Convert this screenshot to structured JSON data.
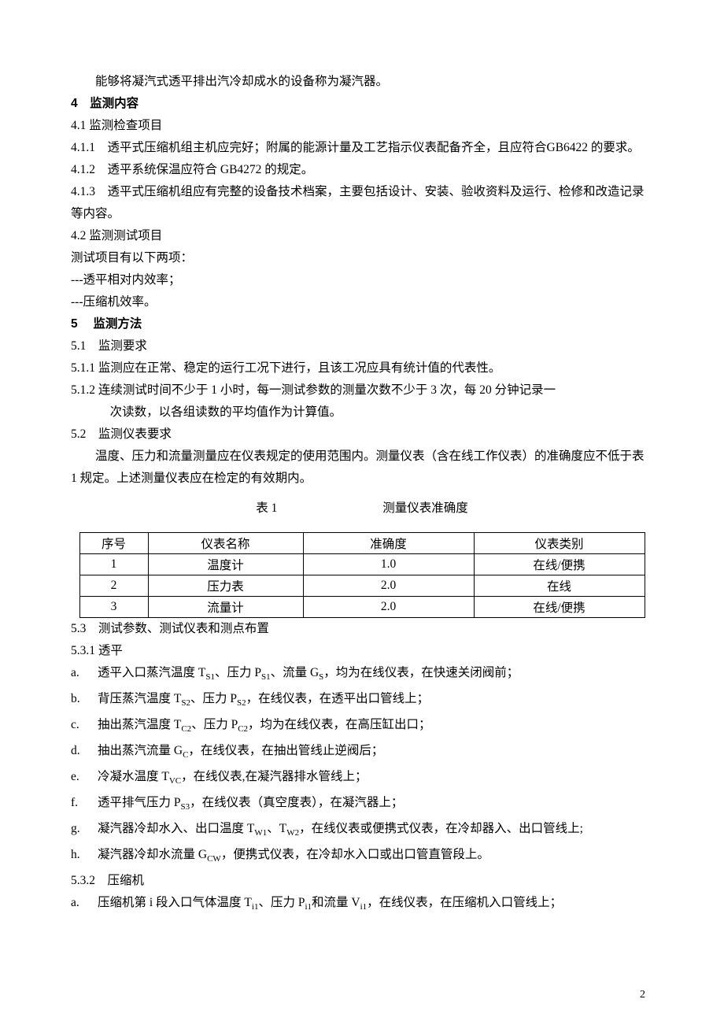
{
  "intro_line": "能够将凝汽式透平排出汽冷却成水的设备称为凝汽器。",
  "sec4": {
    "heading": "4　监测内容",
    "s4_1": "4.1 监测检查项目",
    "s4_1_1": "4.1.1　透平式压缩机组主机应完好；附属的能源计量及工艺指示仪表配备齐全，且应符合GB6422 的要求。",
    "s4_1_2": "4.1.2　透平系统保温应符合 GB4272 的规定。",
    "s4_1_3": "4.1.3　透平式压缩机组应有完整的设备技术档案，主要包括设计、安装、验收资料及运行、检修和改造记录等内容。",
    "s4_2": "4.2 监测测试项目",
    "s4_2_intro": "测试项目有以下两项：",
    "s4_2_item1": "---透平相对内效率；",
    "s4_2_item2": "---压缩机效率。"
  },
  "sec5": {
    "heading": "5　 监测方法",
    "s5_1": "5.1　监测要求",
    "s5_1_1": "5.1.1 监测应在正常、稳定的运行工况下进行，且该工况应具有统计值的代表性。",
    "s5_1_2a": "5.1.2 连续测试时间不少于 1 小时，每一测试参数的测量次数不少于 3 次，每 20 分钟记录一",
    "s5_1_2b": "次读数，以各组读数的平均值作为计算值。",
    "s5_2": "5.2　监测仪表要求",
    "s5_2_para": "温度、压力和流量测量应在仪表规定的使用范围内。测量仪表（含在线工作仪表）的准确度应不低于表 1 规定。上述测量仪表应在检定的有效期内。",
    "table": {
      "caption_label": "表 1",
      "caption_title": "测量仪表准确度",
      "headers": [
        "序号",
        "仪表名称",
        "准确度",
        "仪表类别"
      ],
      "rows": [
        [
          "1",
          "温度计",
          "1.0",
          "在线/便携"
        ],
        [
          "2",
          "压力表",
          "2.0",
          "在线"
        ],
        [
          "3",
          "流量计",
          "2.0",
          "在线/便携"
        ]
      ]
    },
    "s5_3": "5.3　测试参数、测试仪表和测点布置",
    "s5_3_1": "5.3.1 透平",
    "items_5_3_1": [
      {
        "letter": "a.",
        "prefix": "透平入口蒸汽温度 T",
        "sub1": "S1",
        "mid1": "、压力 P",
        "sub2": "S1",
        "mid2": "、流量 G",
        "sub3": "S",
        "suffix": "，均为在线仪表，在快速关闭阀前；"
      },
      {
        "letter": "b.",
        "prefix": "背压蒸汽温度 T",
        "sub1": "S2",
        "mid1": "、压力 P",
        "sub2": "S2",
        "mid2": "",
        "sub3": "",
        "suffix": "，在线仪表，在透平出口管线上；"
      },
      {
        "letter": "c.",
        "prefix": "抽出蒸汽温度 T",
        "sub1": "C2",
        "mid1": "、压力 P",
        "sub2": "C2",
        "mid2": "",
        "sub3": "",
        "suffix": "，均为在线仪表，在高压缸出口；"
      },
      {
        "letter": "d.",
        "prefix": "抽出蒸汽流量 G",
        "sub1": "C",
        "mid1": "",
        "sub2": "",
        "mid2": "",
        "sub3": "",
        "suffix": "，在线仪表，在抽出管线止逆阀后；"
      },
      {
        "letter": "e.",
        "prefix": "冷凝水温度 T",
        "sub1": "VC",
        "mid1": "",
        "sub2": "",
        "mid2": "",
        "sub3": "",
        "suffix": "，在线仪表,在凝汽器排水管线上；"
      },
      {
        "letter": "f.",
        "prefix": "透平排气压力 P",
        "sub1": "S3",
        "mid1": "",
        "sub2": "",
        "mid2": "",
        "sub3": "",
        "suffix": "，在线仪表（真空度表），在凝汽器上；"
      },
      {
        "letter": "g.",
        "prefix": "凝汽器冷却水入、出口温度 T",
        "sub1": "W1",
        "mid1": "、T",
        "sub2": "W2",
        "mid2": "",
        "sub3": "",
        "suffix": "，在线仪表或便携式仪表，在冷却器入、出口管线上;"
      },
      {
        "letter": "h.",
        "prefix": "凝汽器冷却水流量 G",
        "sub1": "CW",
        "mid1": "",
        "sub2": "",
        "mid2": "",
        "sub3": "",
        "suffix": "，便携式仪表，在冷却水入口或出口管直管段上。"
      }
    ],
    "s5_3_2": "5.3.2　压缩机",
    "items_5_3_2": [
      {
        "letter": "a.",
        "prefix": "压缩机第 i 段入口气体温度 T",
        "sub1": "i1",
        "mid1": "、压力 P",
        "sub2": "i1",
        "mid2": "和流量 V",
        "sub3": "i1",
        "suffix": "，在线仪表，在压缩机入口管线上；"
      }
    ]
  },
  "page_number": "2"
}
